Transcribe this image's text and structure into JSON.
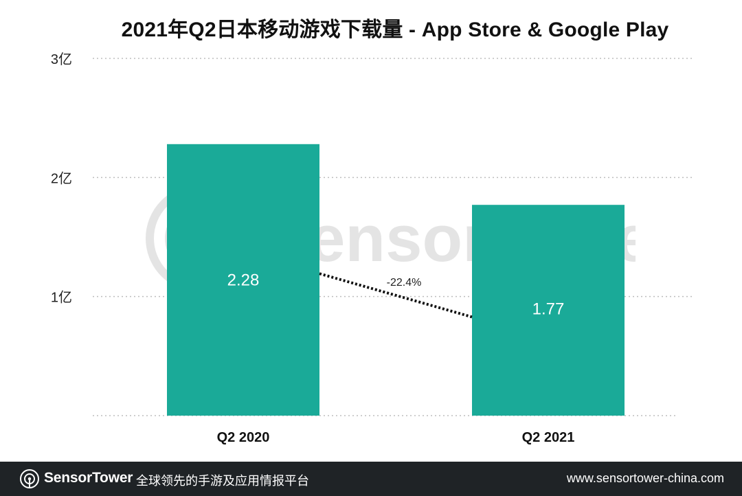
{
  "chart_data": {
    "type": "bar",
    "title": "2021年Q2日本移动游戏下载量 - App Store & Google Play",
    "categories": [
      "Q2  2020",
      "Q2 2021"
    ],
    "values": [
      2.28,
      1.77
    ],
    "data_labels": [
      "2.28",
      "1.77"
    ],
    "ylim": [
      0,
      3
    ],
    "yticks": [
      1,
      2,
      3
    ],
    "ytick_labels": [
      "1亿",
      "2亿",
      "3亿"
    ],
    "grid": true,
    "bar_color": "#1aaa98",
    "change_label": "-22.4%"
  },
  "watermark": {
    "text": "SensorTower",
    "icon": "sensortower-logo-icon"
  },
  "footer": {
    "brand": "SensorTower",
    "tagline": "全球领先的手游及应用情报平台",
    "url": "www.sensortower-china.com"
  }
}
